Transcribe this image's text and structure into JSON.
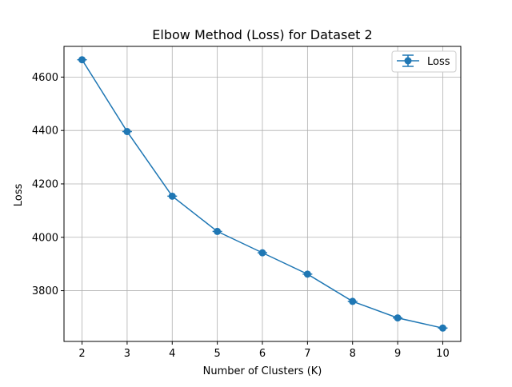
{
  "chart_data": {
    "type": "line",
    "title": "Elbow Method (Loss) for Dataset 2",
    "xlabel": "Number of Clusters (K)",
    "ylabel": "Loss",
    "x": [
      2,
      3,
      4,
      5,
      6,
      7,
      8,
      9,
      10
    ],
    "series": [
      {
        "name": "Loss",
        "values": [
          4665,
          4396,
          4154,
          4022,
          3942,
          3862,
          3760,
          3698,
          3660
        ],
        "color": "#1f77b4",
        "marker": "circle",
        "error_bars": true
      }
    ],
    "xticks": [
      2,
      3,
      4,
      5,
      6,
      7,
      8,
      9,
      10
    ],
    "yticks": [
      3800,
      4000,
      4200,
      4400,
      4600
    ],
    "xlim": [
      1.6,
      10.4
    ],
    "ylim": [
      3610,
      4715
    ],
    "grid": true,
    "legend_position": "upper-right"
  }
}
